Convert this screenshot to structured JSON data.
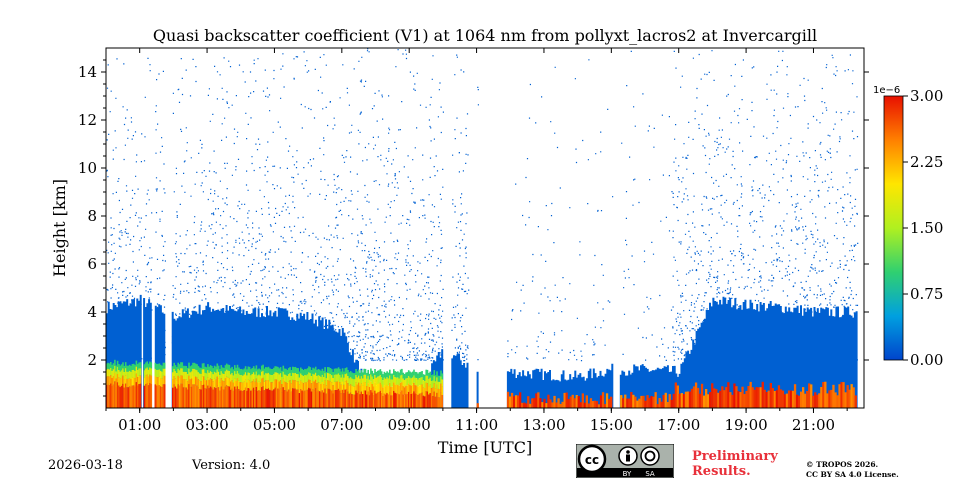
{
  "chart_data": {
    "type": "heatmap",
    "title": "Quasi backscatter coefficient (V1) at 1064 nm from pollyxt_lacros2 at Invercargill",
    "xlabel": "Time [UTC]",
    "ylabel": "Height [km]",
    "xlim": [
      0.0,
      22.5
    ],
    "ylim": [
      0,
      15
    ],
    "x_ticks": [
      1,
      3,
      5,
      7,
      9,
      11,
      13,
      15,
      17,
      19,
      21
    ],
    "x_tick_labels": [
      "01:00",
      "03:00",
      "05:00",
      "07:00",
      "09:00",
      "11:00",
      "13:00",
      "15:00",
      "17:00",
      "19:00",
      "21:00"
    ],
    "y_ticks": [
      2,
      4,
      6,
      8,
      10,
      12,
      14
    ],
    "y_tick_labels": [
      "2",
      "4",
      "6",
      "8",
      "10",
      "12",
      "14"
    ],
    "colorbar": {
      "min": 0.0,
      "max": 3.0,
      "exponent_label": "1e−6",
      "ticks": [
        0.0,
        0.75,
        1.5,
        2.25,
        3.0
      ],
      "tick_labels": [
        "0.00",
        "0.75",
        "1.50",
        "2.25",
        "3.00"
      ],
      "colors": [
        "#0044cc",
        "#00a0e0",
        "#30d070",
        "#b0f020",
        "#ffe600",
        "#ff8000",
        "#e81000"
      ]
    },
    "data_gaps_hours": [
      [
        1.05,
        1.12
      ],
      [
        1.35,
        1.45
      ],
      [
        1.75,
        1.95
      ],
      [
        10.0,
        10.25
      ],
      [
        10.75,
        11.0
      ],
      [
        11.05,
        11.9
      ],
      [
        15.05,
        15.25
      ],
      [
        22.3,
        22.5
      ]
    ],
    "layers": [
      {
        "name": "dense backscatter region",
        "color_value": 0.15,
        "t_start": 0.0,
        "t_end": 22.5,
        "top_km": [
          4.2,
          4.5,
          3.8,
          4.2,
          4.0,
          4.0,
          3.8,
          3.2,
          0,
          0,
          2.5,
          1.5,
          1.5,
          1.4,
          1.3,
          1.6,
          1.6,
          1.5,
          4.5,
          4.3,
          4.2,
          4.0,
          4.0
        ]
      },
      {
        "name": "boundary layer aerosol",
        "t_start": 0.0,
        "t_end": 10.0,
        "top_km": 1.9,
        "bottom_km": 0.0,
        "color_value_range": [
          1.2,
          3.0
        ]
      },
      {
        "name": "near-ground strong signal",
        "t_start": 11.0,
        "t_end": 22.3,
        "top_km": 1.0,
        "color_value_range": [
          2.25,
          3.0
        ]
      }
    ]
  },
  "footer": {
    "date": "2026-03-18",
    "version": "Version: 4.0",
    "preliminary_line1": "Preliminary",
    "preliminary_line2": "Results.",
    "copyright_line1": "© TROPOS 2026.",
    "copyright_line2": "CC BY SA 4.0 License.",
    "badge_cc": "cc",
    "badge_by": "BY",
    "badge_sa": "SA"
  }
}
